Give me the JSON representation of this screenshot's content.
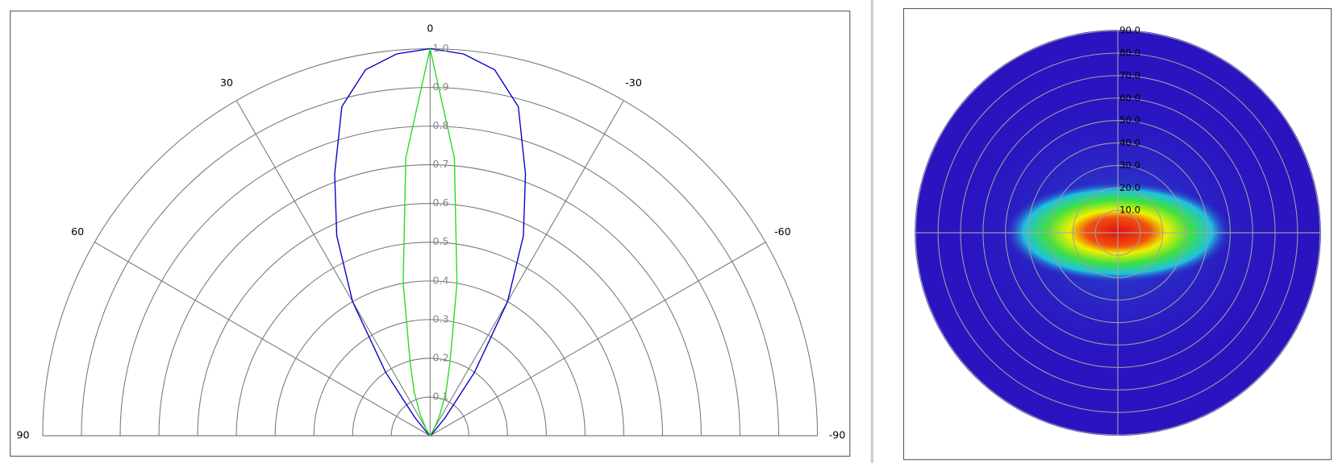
{
  "chart_data": [
    {
      "type": "polar-line",
      "x": [
        -90,
        -85,
        -80,
        -75,
        -70,
        -65,
        -60,
        -55,
        -50,
        -45,
        -40,
        -35,
        -30,
        -25,
        -20,
        -15,
        -10,
        -5,
        0,
        5,
        10,
        15,
        20,
        25,
        30,
        35,
        40,
        45,
        50,
        55,
        60,
        65,
        70,
        75,
        80,
        85,
        90
      ],
      "xticks": [
        90,
        60,
        30,
        0,
        -30,
        -60,
        -90
      ],
      "rlim": [
        0,
        1
      ],
      "rticks": [
        0.1,
        0.2,
        0.3,
        0.4,
        0.5,
        0.6,
        0.7,
        0.8,
        0.9,
        {
          "value": 1,
          "label": "1.0"
        }
      ],
      "series": [
        {
          "color": "#0000c8",
          "values": [
            0,
            0,
            0,
            0,
            0,
            0,
            0,
            0,
            0,
            0.01,
            0.06,
            0.2,
            0.4,
            0.57,
            0.72,
            0.88,
            0.96,
            0.99,
            1.0,
            0.99,
            0.96,
            0.88,
            0.72,
            0.57,
            0.4,
            0.2,
            0.06,
            0.01,
            0,
            0,
            0,
            0,
            0,
            0,
            0,
            0,
            0
          ]
        },
        {
          "color": "#22dd22",
          "values": [
            0,
            0,
            0,
            0,
            0,
            0,
            0,
            0,
            0,
            0,
            0,
            0,
            0.02,
            0.06,
            0.12,
            0.2,
            0.4,
            0.72,
            1.0,
            0.72,
            0.4,
            0.2,
            0.12,
            0.06,
            0.02,
            0,
            0,
            0,
            0,
            0,
            0,
            0,
            0,
            0,
            0,
            0,
            0
          ]
        }
      ]
    },
    {
      "type": "polar-heatmap",
      "rlim": [
        0,
        90
      ],
      "rticks": [
        {
          "value": 10,
          "label": "10.0"
        },
        {
          "value": 20,
          "label": "20.0"
        },
        {
          "value": 30,
          "label": "30.0"
        },
        {
          "value": 40,
          "label": "40.0"
        },
        {
          "value": 50,
          "label": "50.0"
        },
        {
          "value": 60,
          "label": "60.0"
        },
        {
          "value": 70,
          "label": "70.0"
        },
        {
          "value": 80,
          "label": "80.0"
        },
        {
          "value": 90,
          "label": "90.0"
        }
      ]
    }
  ]
}
